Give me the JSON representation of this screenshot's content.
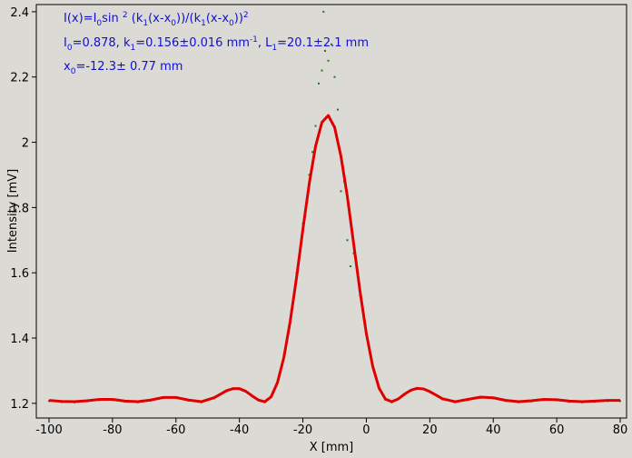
{
  "chart_data": {
    "type": "line",
    "xlabel": "X [mm]",
    "ylabel": "Intensity [mV]",
    "xlim": [
      -104,
      82
    ],
    "ylim": [
      1.155,
      2.422
    ],
    "xticks": [
      -100,
      -80,
      -60,
      -40,
      -20,
      0,
      20,
      40,
      60,
      80
    ],
    "yticks": [
      1.2,
      1.4,
      1.6,
      1.8,
      2,
      2.2,
      2.4
    ],
    "annotations": [
      [
        {
          "text": "I(x)=I"
        },
        {
          "text": "0",
          "sub": true
        },
        {
          "text": "sin "
        },
        {
          "text": "2",
          "sup": true
        },
        {
          "text": " (k"
        },
        {
          "text": "1",
          "sub": true
        },
        {
          "text": "(x-x"
        },
        {
          "text": "0",
          "sub": true
        },
        {
          "text": "))/(k"
        },
        {
          "text": "1",
          "sub": true
        },
        {
          "text": "(x-x"
        },
        {
          "text": "0",
          "sub": true
        },
        {
          "text": "))"
        },
        {
          "text": "2",
          "sup": true
        }
      ],
      [
        {
          "text": "I"
        },
        {
          "text": "0",
          "sub": true
        },
        {
          "text": "=0.878,  k"
        },
        {
          "text": "1",
          "sub": true
        },
        {
          "text": "=0.156±0.016 mm"
        },
        {
          "text": "-1",
          "sup": true
        },
        {
          "text": ",   L"
        },
        {
          "text": "1",
          "sub": true
        },
        {
          "text": "=20.1±2.1 mm"
        }
      ],
      [
        {
          "text": "x"
        },
        {
          "text": "0",
          "sub": true
        },
        {
          "text": "=-12.3±   0.77 mm"
        }
      ]
    ],
    "series": [
      {
        "type": "scatter",
        "color": "#1f7a1f",
        "x": [
          -100,
          -96,
          -92,
          -88,
          -84,
          -80,
          -76,
          -72,
          -68,
          -64,
          -60,
          -56,
          -52,
          -48,
          -44,
          -40,
          -36,
          -32,
          -28,
          -24,
          -22,
          -21,
          -20,
          -19,
          -18,
          -17,
          -16,
          -15,
          -14,
          -13.5,
          -13,
          -12,
          -11,
          -10,
          -9,
          -8,
          -7,
          -6,
          -5,
          -4,
          -2,
          0,
          2,
          4,
          6,
          8,
          12,
          16,
          20,
          24,
          28,
          32,
          36,
          40,
          44,
          48,
          52,
          56,
          60,
          64,
          68,
          72,
          76,
          80
        ],
        "values": [
          1.207,
          1.204,
          1.203,
          1.206,
          1.21,
          1.21,
          1.205,
          1.203,
          1.208,
          1.216,
          1.216,
          1.208,
          1.203,
          1.215,
          1.237,
          1.243,
          1.221,
          1.203,
          1.262,
          1.449,
          1.6,
          1.66,
          1.75,
          1.8,
          1.9,
          1.97,
          2.05,
          2.18,
          2.22,
          2.4,
          2.28,
          2.25,
          2.3,
          2.2,
          2.1,
          1.85,
          1.88,
          1.7,
          1.62,
          1.66,
          1.53,
          1.41,
          1.312,
          1.245,
          1.211,
          1.203,
          1.226,
          1.244,
          1.234,
          1.212,
          1.203,
          1.21,
          1.217,
          1.215,
          1.207,
          1.203,
          1.206,
          1.21,
          1.209,
          1.205,
          1.203,
          1.205,
          1.207,
          1.207
        ]
      },
      {
        "type": "line",
        "color": "#e00000",
        "x": [
          -100,
          -96,
          -92,
          -88,
          -84,
          -80,
          -76,
          -72,
          -68,
          -64,
          -60,
          -56,
          -52,
          -48,
          -46,
          -44,
          -42,
          -40,
          -38,
          -36,
          -34,
          -32,
          -30,
          -28,
          -26,
          -24,
          -22,
          -20,
          -18,
          -16,
          -14,
          -12,
          -10,
          -8,
          -6,
          -4,
          -2,
          0,
          2,
          4,
          6,
          8,
          10,
          12,
          14,
          16,
          18,
          20,
          22,
          24,
          28,
          32,
          36,
          40,
          44,
          48,
          52,
          56,
          60,
          64,
          68,
          72,
          76,
          80
        ],
        "values": [
          1.209,
          1.206,
          1.205,
          1.208,
          1.212,
          1.212,
          1.207,
          1.205,
          1.21,
          1.218,
          1.218,
          1.21,
          1.205,
          1.217,
          1.228,
          1.239,
          1.245,
          1.245,
          1.237,
          1.223,
          1.21,
          1.205,
          1.22,
          1.264,
          1.34,
          1.451,
          1.585,
          1.733,
          1.873,
          1.988,
          2.061,
          2.082,
          2.046,
          1.957,
          1.835,
          1.689,
          1.544,
          1.414,
          1.314,
          1.247,
          1.213,
          1.205,
          1.213,
          1.228,
          1.24,
          1.246,
          1.244,
          1.236,
          1.225,
          1.214,
          1.205,
          1.212,
          1.219,
          1.217,
          1.209,
          1.205,
          1.208,
          1.212,
          1.211,
          1.207,
          1.205,
          1.207,
          1.209,
          1.209
        ]
      }
    ]
  }
}
